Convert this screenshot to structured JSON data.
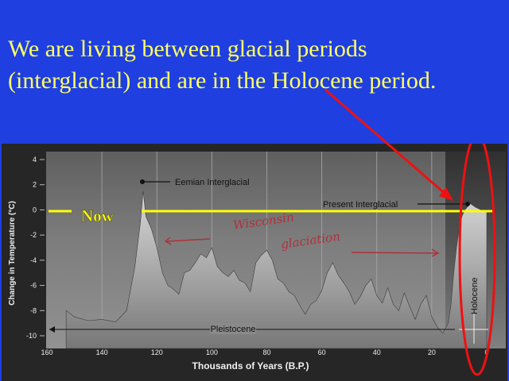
{
  "slide": {
    "title_line1": "We are  living between glacial periods",
    "title_line2": "(interglacial) and are in the Holocene period."
  },
  "chart_data": {
    "type": "area",
    "xlabel": "Thousands of Years (B.P.)",
    "ylabel": "Change in Temperature (°C)",
    "xlim": [
      160,
      0
    ],
    "ylim": [
      -10.5,
      4.5
    ],
    "x_ticks": [
      160,
      140,
      120,
      100,
      80,
      60,
      40,
      20,
      0
    ],
    "y_ticks": [
      4,
      2,
      0,
      -2,
      -4,
      -6,
      -8,
      -10
    ],
    "series": [
      {
        "x": [
          153,
          150,
          145,
          140,
          135,
          131,
          128,
          126,
          125,
          124,
          122,
          120,
          118,
          116,
          114,
          112,
          110,
          108,
          106,
          104,
          102,
          100,
          98,
          96,
          94,
          92,
          90,
          88,
          86,
          84,
          82,
          80,
          78,
          76,
          74,
          72,
          70,
          68,
          66,
          64,
          62,
          60,
          58,
          56,
          54,
          52,
          50,
          48,
          46,
          44,
          42,
          40,
          38,
          36,
          34,
          32,
          30,
          28,
          26,
          24,
          22,
          20,
          18,
          16,
          14,
          13,
          12,
          11,
          10,
          9,
          8,
          6,
          4,
          2,
          0
        ],
        "y": [
          -8,
          -8.5,
          -8.8,
          -8.7,
          -8.9,
          -8,
          -4.5,
          -1,
          1.5,
          -0.5,
          -1.5,
          -3,
          -5,
          -6,
          -6.3,
          -6.7,
          -5,
          -4.8,
          -4.2,
          -3.5,
          -3.8,
          -3,
          -4.5,
          -5,
          -5.3,
          -4.8,
          -5.6,
          -5.8,
          -6.5,
          -4.2,
          -3.6,
          -3.2,
          -4,
          -5.5,
          -5.8,
          -6.5,
          -6.8,
          -7.6,
          -8.3,
          -7.5,
          -7.2,
          -6.4,
          -5,
          -4.2,
          -5.2,
          -5.8,
          -6.5,
          -7.5,
          -6.9,
          -6,
          -5.5,
          -6.8,
          -7.4,
          -6.2,
          -7.5,
          -8,
          -6.6,
          -7.7,
          -8.7,
          -7.5,
          -6.8,
          -8.5,
          -9.3,
          -9.8,
          -9,
          -7.5,
          -5,
          -3,
          -1.5,
          -0.5,
          0,
          0.5,
          0.2,
          0,
          0
        ]
      }
    ],
    "annotations": {
      "eemian": "Eemian Interglacial",
      "present": "Present Interglacial",
      "pleistocene": "Pleistocene",
      "holocene": "Holocene",
      "now": "Now",
      "wisconsin_1": "Wisconsin",
      "wisconsin_2": "glaciation"
    },
    "grid": true
  },
  "colors": {
    "background": "#1f3fe0",
    "title": "#ffff66",
    "now_line": "#ffff00",
    "arrow": "#ee1111",
    "handwriting": "#b0303a"
  }
}
